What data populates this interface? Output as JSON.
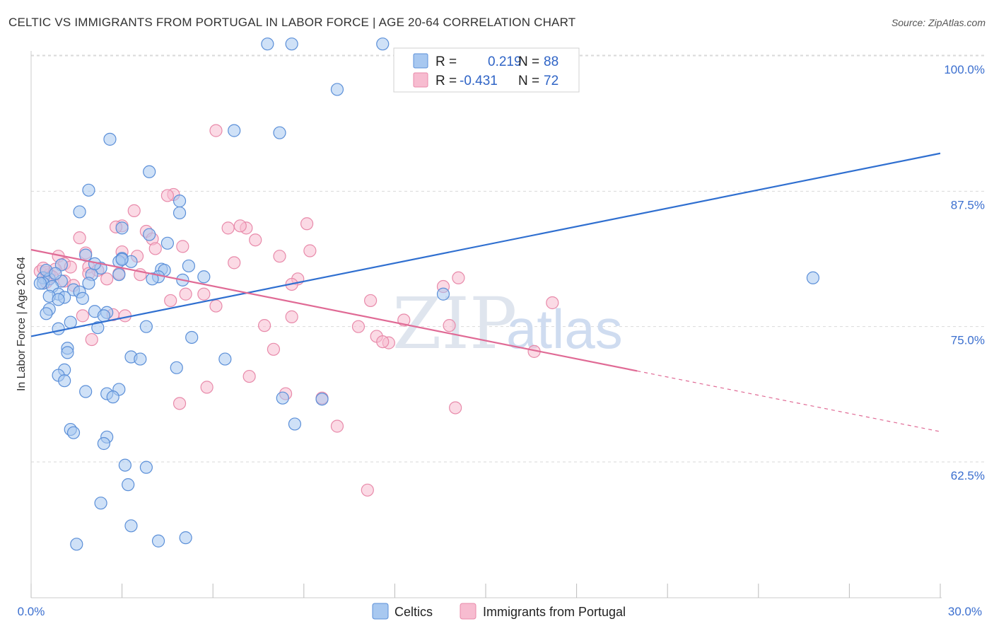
{
  "title": "CELTIC VS IMMIGRANTS FROM PORTUGAL IN LABOR FORCE | AGE 20-64 CORRELATION CHART",
  "source": "Source: ZipAtlas.com",
  "watermark": {
    "zip": "ZIP",
    "atlas": "atlas"
  },
  "colors": {
    "blue_fill": "#a8c8f0",
    "blue_stroke": "#5b8fd8",
    "blue_line": "#2f6fd0",
    "pink_fill": "#f7bcd0",
    "pink_stroke": "#e88aaa",
    "pink_line": "#e06a95",
    "grid": "#d9d9d9",
    "axis_text": "#3b6fcf"
  },
  "legend": {
    "rows": [
      {
        "r_label": "R =",
        "r_value": "0.219",
        "n_label": "N =",
        "n_value": "88"
      },
      {
        "r_label": "R =",
        "r_value": "-0.431",
        "n_label": "N =",
        "n_value": "72"
      }
    ]
  },
  "bottom_legend": {
    "celtics": "Celtics",
    "portugal": "Immigrants from Portugal"
  },
  "chart_data": {
    "type": "scatter",
    "xlabel": "",
    "ylabel": "In Labor Force | Age 20-64",
    "x_tick_labels": {
      "min": "0.0%",
      "max": "30.0%"
    },
    "y_tick_labels": [
      "100.0%",
      "87.5%",
      "75.0%",
      "62.5%"
    ],
    "y_ticks": [
      100.0,
      87.5,
      75.0,
      62.5
    ],
    "xlim": [
      0,
      30
    ],
    "ylim": [
      52,
      102
    ],
    "grid": true,
    "series": [
      {
        "name": "Celtics",
        "r": 0.219,
        "n": 88,
        "trend": {
          "x0": 0,
          "y0": 74.1,
          "x1": 30,
          "y1": 91.0,
          "dashed_from": null
        },
        "points": [
          [
            7.8,
            101.1
          ],
          [
            8.6,
            101.1
          ],
          [
            11.6,
            101.1
          ],
          [
            10.1,
            96.9
          ],
          [
            6.7,
            93.1
          ],
          [
            8.2,
            92.9
          ],
          [
            2.6,
            92.3
          ],
          [
            3.9,
            89.3
          ],
          [
            1.9,
            87.6
          ],
          [
            4.9,
            86.6
          ],
          [
            1.6,
            85.6
          ],
          [
            4.9,
            85.5
          ],
          [
            3.0,
            84.1
          ],
          [
            3.9,
            83.5
          ],
          [
            4.5,
            82.7
          ],
          [
            1.8,
            81.6
          ],
          [
            3.0,
            81.3
          ],
          [
            2.9,
            81.0
          ],
          [
            5.2,
            80.6
          ],
          [
            2.3,
            80.4
          ],
          [
            4.3,
            80.3
          ],
          [
            4.4,
            80.2
          ],
          [
            2.0,
            79.8
          ],
          [
            2.9,
            79.8
          ],
          [
            5.7,
            79.6
          ],
          [
            0.4,
            79.5
          ],
          [
            0.6,
            79.4
          ],
          [
            1.0,
            79.2
          ],
          [
            1.9,
            79.0
          ],
          [
            0.4,
            79.0
          ],
          [
            0.7,
            78.7
          ],
          [
            1.4,
            78.4
          ],
          [
            1.6,
            78.2
          ],
          [
            0.9,
            78.0
          ],
          [
            13.6,
            78.0
          ],
          [
            0.6,
            77.8
          ],
          [
            1.1,
            77.7
          ],
          [
            1.7,
            77.6
          ],
          [
            0.9,
            77.5
          ],
          [
            0.6,
            76.6
          ],
          [
            2.1,
            76.4
          ],
          [
            2.5,
            76.3
          ],
          [
            0.5,
            76.2
          ],
          [
            2.4,
            76.0
          ],
          [
            1.3,
            75.4
          ],
          [
            3.8,
            75.0
          ],
          [
            2.2,
            74.9
          ],
          [
            0.9,
            74.8
          ],
          [
            5.3,
            74.0
          ],
          [
            1.2,
            73.0
          ],
          [
            1.2,
            72.6
          ],
          [
            3.3,
            72.2
          ],
          [
            3.6,
            72.0
          ],
          [
            6.4,
            72.0
          ],
          [
            4.8,
            71.2
          ],
          [
            1.1,
            71.0
          ],
          [
            0.9,
            70.5
          ],
          [
            1.1,
            70.0
          ],
          [
            2.9,
            69.2
          ],
          [
            1.8,
            69.0
          ],
          [
            2.5,
            68.8
          ],
          [
            2.7,
            68.5
          ],
          [
            8.3,
            68.4
          ],
          [
            9.6,
            68.3
          ],
          [
            8.7,
            66.0
          ],
          [
            1.3,
            65.5
          ],
          [
            1.4,
            65.2
          ],
          [
            2.5,
            64.8
          ],
          [
            2.4,
            64.2
          ],
          [
            3.1,
            62.2
          ],
          [
            3.8,
            62.0
          ],
          [
            3.2,
            60.4
          ],
          [
            2.3,
            58.7
          ],
          [
            3.3,
            56.6
          ],
          [
            4.2,
            55.2
          ],
          [
            5.1,
            55.5
          ],
          [
            1.5,
            54.9
          ],
          [
            25.8,
            79.5
          ],
          [
            4.2,
            79.6
          ],
          [
            5.0,
            79.3
          ],
          [
            2.1,
            80.8
          ],
          [
            0.5,
            80.2
          ],
          [
            3.3,
            81.0
          ],
          [
            1.0,
            80.7
          ],
          [
            0.3,
            79.0
          ],
          [
            0.8,
            79.9
          ],
          [
            3.0,
            81.2
          ],
          [
            4.0,
            79.4
          ]
        ]
      },
      {
        "name": "Immigrants from Portugal",
        "r": -0.431,
        "n": 72,
        "trend": {
          "x0": 0,
          "y0": 82.1,
          "x1": 30,
          "y1": 65.3,
          "dashed_from": 20.0
        },
        "points": [
          [
            6.1,
            93.1
          ],
          [
            4.7,
            87.2
          ],
          [
            4.5,
            87.1
          ],
          [
            3.4,
            85.7
          ],
          [
            9.1,
            84.5
          ],
          [
            3.0,
            84.3
          ],
          [
            7.1,
            84.1
          ],
          [
            6.5,
            84.1
          ],
          [
            2.8,
            84.2
          ],
          [
            3.8,
            83.8
          ],
          [
            1.6,
            83.2
          ],
          [
            4.0,
            83.1
          ],
          [
            7.4,
            83.0
          ],
          [
            4.1,
            82.2
          ],
          [
            9.2,
            82.0
          ],
          [
            3.0,
            81.9
          ],
          [
            1.8,
            81.8
          ],
          [
            0.9,
            81.5
          ],
          [
            8.2,
            81.5
          ],
          [
            3.5,
            81.5
          ],
          [
            6.7,
            80.9
          ],
          [
            1.1,
            80.8
          ],
          [
            1.9,
            80.5
          ],
          [
            0.8,
            80.3
          ],
          [
            2.2,
            80.2
          ],
          [
            0.3,
            80.1
          ],
          [
            0.5,
            80.0
          ],
          [
            0.6,
            79.8
          ],
          [
            1.9,
            79.9
          ],
          [
            0.7,
            79.6
          ],
          [
            14.1,
            79.5
          ],
          [
            8.8,
            79.4
          ],
          [
            1.1,
            79.2
          ],
          [
            0.5,
            79.1
          ],
          [
            8.6,
            78.9
          ],
          [
            1.4,
            78.8
          ],
          [
            13.6,
            78.7
          ],
          [
            5.1,
            78.0
          ],
          [
            5.7,
            78.0
          ],
          [
            4.6,
            77.4
          ],
          [
            11.2,
            77.4
          ],
          [
            17.2,
            77.2
          ],
          [
            6.1,
            76.9
          ],
          [
            2.7,
            76.1
          ],
          [
            1.7,
            76.0
          ],
          [
            3.1,
            76.0
          ],
          [
            8.6,
            75.9
          ],
          [
            12.3,
            75.6
          ],
          [
            7.7,
            75.1
          ],
          [
            13.8,
            75.1
          ],
          [
            10.8,
            75.0
          ],
          [
            11.4,
            74.1
          ],
          [
            2.0,
            73.8
          ],
          [
            11.8,
            73.5
          ],
          [
            11.6,
            73.6
          ],
          [
            8.0,
            72.9
          ],
          [
            16.6,
            72.7
          ],
          [
            7.2,
            70.4
          ],
          [
            5.8,
            69.4
          ],
          [
            8.4,
            68.8
          ],
          [
            9.6,
            68.4
          ],
          [
            4.9,
            67.9
          ],
          [
            14.0,
            67.5
          ],
          [
            10.1,
            65.8
          ],
          [
            11.1,
            59.9
          ],
          [
            2.9,
            79.9
          ],
          [
            0.4,
            80.4
          ],
          [
            1.3,
            80.5
          ],
          [
            6.9,
            84.3
          ],
          [
            5.0,
            82.4
          ],
          [
            3.6,
            79.8
          ],
          [
            2.5,
            79.4
          ]
        ]
      }
    ]
  }
}
